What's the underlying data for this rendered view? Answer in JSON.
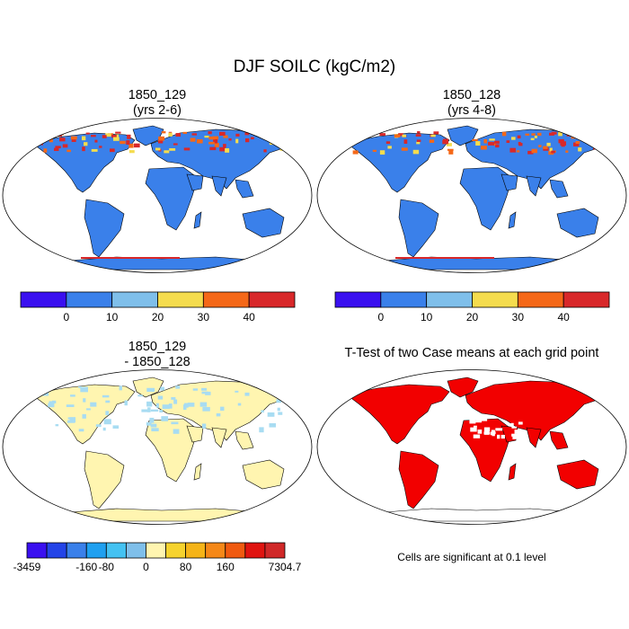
{
  "title": "DJF SOILC (kgC/m2)",
  "panels": [
    {
      "title_line1": "1850_129",
      "title_line2": "(yrs 2-6)"
    },
    {
      "title_line1": "1850_128",
      "title_line2": "(yrs 4-8)"
    },
    {
      "title_line1": "1850_129",
      "title_line2": "- 1850_128"
    },
    {
      "title_line1": "T-Test of two Case means at each grid point",
      "title_line2": ""
    }
  ],
  "colorbar_top": {
    "colors": [
      "#3a10f0",
      "#3a80ea",
      "#7fbfea",
      "#f5dc4e",
      "#f56818",
      "#d8282a"
    ],
    "tick_labels": [
      "0",
      "10",
      "20",
      "30",
      "40"
    ]
  },
  "colorbar_diff": {
    "colors": [
      "#3a10f0",
      "#2444e8",
      "#3a80ea",
      "#1fa0f0",
      "#44c2f2",
      "#7fbfea",
      "#fff5b0",
      "#f6d32e",
      "#f5b418",
      "#f58818",
      "#f05a10",
      "#e01410",
      "#d02828"
    ],
    "tick_labels": [
      "-3459",
      "-160",
      "-80",
      "0",
      "80",
      "160",
      "7304.7"
    ]
  },
  "map_colors": {
    "land_value": "#3a80ea",
    "high_value": "#d8282a",
    "mid_value": "#f56818",
    "warm_value": "#f5dc4e",
    "diff_land": "#fff5b0",
    "diff_light": "#a8dcf2",
    "significant": "#f20000",
    "coast": "#000000"
  },
  "significance_note": "Cells are significant at 0.1 level"
}
